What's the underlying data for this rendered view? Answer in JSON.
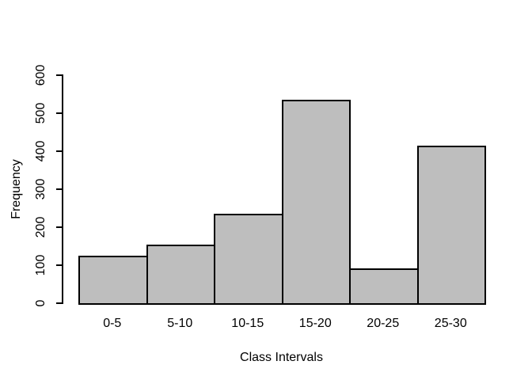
{
  "chart_data": {
    "type": "bar",
    "subtype": "histogram",
    "title": "",
    "xlabel": "Class Intervals",
    "ylabel": "Frequency",
    "categories": [
      "0-5",
      "5-10",
      "10-15",
      "15-20",
      "20-25",
      "25-30"
    ],
    "values": [
      125,
      155,
      235,
      535,
      92,
      415
    ],
    "ylim": [
      0,
      600
    ],
    "yticks": [
      0,
      100,
      200,
      300,
      400,
      500,
      600
    ],
    "grid": "off",
    "legend": "none",
    "colors": {
      "bar_fill": "#BEBEBE",
      "bar_border": "#000000",
      "axis": "#000000",
      "text": "#000000",
      "background": "#FFFFFF"
    }
  }
}
